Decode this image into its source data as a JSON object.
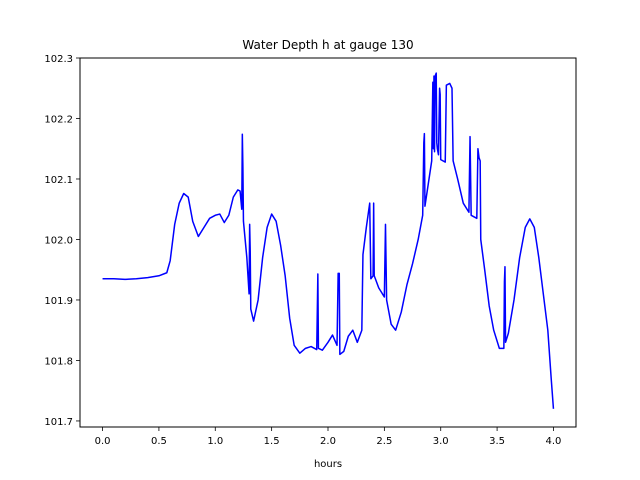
{
  "chart_data": {
    "type": "line",
    "title": "Water Depth h at gauge 130",
    "xlabel": "hours",
    "ylabel": "",
    "xlim": [
      -0.2,
      4.2
    ],
    "ylim": [
      101.69,
      102.3
    ],
    "xticks": [
      0.0,
      0.5,
      1.0,
      1.5,
      2.0,
      2.5,
      3.0,
      3.5,
      4.0
    ],
    "xtick_labels": [
      "0.0",
      "0.5",
      "1.0",
      "1.5",
      "2.0",
      "2.5",
      "3.0",
      "3.5",
      "4.0"
    ],
    "yticks": [
      101.7,
      101.8,
      101.9,
      102.0,
      102.1,
      102.2,
      102.3
    ],
    "ytick_labels": [
      "101.7",
      "101.8",
      "101.9",
      "102.0",
      "102.1",
      "102.2",
      "102.3"
    ],
    "grid": false,
    "legend": "none",
    "series": [
      {
        "color": "#0000ff",
        "points": [
          [
            0.0,
            101.935
          ],
          [
            0.1,
            101.935
          ],
          [
            0.2,
            101.934
          ],
          [
            0.3,
            101.935
          ],
          [
            0.4,
            101.937
          ],
          [
            0.5,
            101.94
          ],
          [
            0.57,
            101.945
          ],
          [
            0.6,
            101.965
          ],
          [
            0.64,
            102.025
          ],
          [
            0.68,
            102.06
          ],
          [
            0.72,
            102.076
          ],
          [
            0.76,
            102.07
          ],
          [
            0.8,
            102.03
          ],
          [
            0.85,
            102.005
          ],
          [
            0.9,
            102.02
          ],
          [
            0.95,
            102.035
          ],
          [
            1.0,
            102.04
          ],
          [
            1.04,
            102.042
          ],
          [
            1.08,
            102.028
          ],
          [
            1.12,
            102.04
          ],
          [
            1.16,
            102.07
          ],
          [
            1.2,
            102.082
          ],
          [
            1.22,
            102.08
          ],
          [
            1.235,
            102.05
          ],
          [
            1.24,
            102.174
          ],
          [
            1.245,
            102.12
          ],
          [
            1.25,
            102.03
          ],
          [
            1.28,
            101.97
          ],
          [
            1.3,
            101.91
          ],
          [
            1.305,
            102.025
          ],
          [
            1.31,
            101.98
          ],
          [
            1.315,
            101.885
          ],
          [
            1.34,
            101.865
          ],
          [
            1.38,
            101.9
          ],
          [
            1.42,
            101.97
          ],
          [
            1.46,
            102.02
          ],
          [
            1.5,
            102.042
          ],
          [
            1.54,
            102.03
          ],
          [
            1.58,
            101.99
          ],
          [
            1.62,
            101.94
          ],
          [
            1.66,
            101.87
          ],
          [
            1.7,
            101.825
          ],
          [
            1.75,
            101.812
          ],
          [
            1.8,
            101.82
          ],
          [
            1.85,
            101.823
          ],
          [
            1.9,
            101.818
          ],
          [
            1.91,
            101.943
          ],
          [
            1.915,
            101.82
          ],
          [
            1.95,
            101.817
          ],
          [
            2.0,
            101.83
          ],
          [
            2.04,
            101.842
          ],
          [
            2.08,
            101.825
          ],
          [
            2.09,
            101.944
          ],
          [
            2.1,
            101.944
          ],
          [
            2.105,
            101.81
          ],
          [
            2.14,
            101.815
          ],
          [
            2.18,
            101.84
          ],
          [
            2.22,
            101.85
          ],
          [
            2.26,
            101.83
          ],
          [
            2.3,
            101.85
          ],
          [
            2.31,
            101.975
          ],
          [
            2.34,
            102.02
          ],
          [
            2.37,
            102.06
          ],
          [
            2.38,
            101.935
          ],
          [
            2.4,
            101.94
          ],
          [
            2.405,
            102.06
          ],
          [
            2.41,
            101.94
          ],
          [
            2.42,
            101.935
          ],
          [
            2.45,
            101.92
          ],
          [
            2.5,
            101.905
          ],
          [
            2.51,
            102.025
          ],
          [
            2.52,
            101.9
          ],
          [
            2.56,
            101.86
          ],
          [
            2.6,
            101.85
          ],
          [
            2.65,
            101.88
          ],
          [
            2.7,
            101.925
          ],
          [
            2.75,
            101.96
          ],
          [
            2.8,
            102.0
          ],
          [
            2.84,
            102.04
          ],
          [
            2.85,
            102.16
          ],
          [
            2.855,
            102.175
          ],
          [
            2.86,
            102.055
          ],
          [
            2.88,
            102.08
          ],
          [
            2.92,
            102.13
          ],
          [
            2.93,
            102.26
          ],
          [
            2.935,
            102.15
          ],
          [
            2.94,
            102.27
          ],
          [
            2.945,
            102.145
          ],
          [
            2.95,
            102.27
          ],
          [
            2.96,
            102.275
          ],
          [
            2.965,
            102.16
          ],
          [
            2.97,
            102.15
          ],
          [
            2.98,
            102.14
          ],
          [
            2.99,
            102.25
          ],
          [
            2.995,
            102.24
          ],
          [
            3.0,
            102.132
          ],
          [
            3.04,
            102.128
          ],
          [
            3.05,
            102.255
          ],
          [
            3.08,
            102.258
          ],
          [
            3.1,
            102.25
          ],
          [
            3.11,
            102.13
          ],
          [
            3.15,
            102.1
          ],
          [
            3.2,
            102.06
          ],
          [
            3.25,
            102.045
          ],
          [
            3.26,
            102.17
          ],
          [
            3.27,
            102.04
          ],
          [
            3.32,
            102.035
          ],
          [
            3.33,
            102.15
          ],
          [
            3.34,
            102.135
          ],
          [
            3.35,
            102.13
          ],
          [
            3.355,
            102.0
          ],
          [
            3.39,
            101.95
          ],
          [
            3.43,
            101.89
          ],
          [
            3.47,
            101.85
          ],
          [
            3.52,
            101.82
          ],
          [
            3.56,
            101.82
          ],
          [
            3.565,
            101.93
          ],
          [
            3.57,
            101.955
          ],
          [
            3.575,
            101.83
          ],
          [
            3.6,
            101.845
          ],
          [
            3.65,
            101.9
          ],
          [
            3.7,
            101.97
          ],
          [
            3.75,
            102.02
          ],
          [
            3.79,
            102.034
          ],
          [
            3.83,
            102.02
          ],
          [
            3.87,
            101.97
          ],
          [
            3.91,
            101.91
          ],
          [
            3.95,
            101.85
          ],
          [
            3.98,
            101.77
          ],
          [
            4.0,
            101.72
          ]
        ]
      }
    ]
  }
}
